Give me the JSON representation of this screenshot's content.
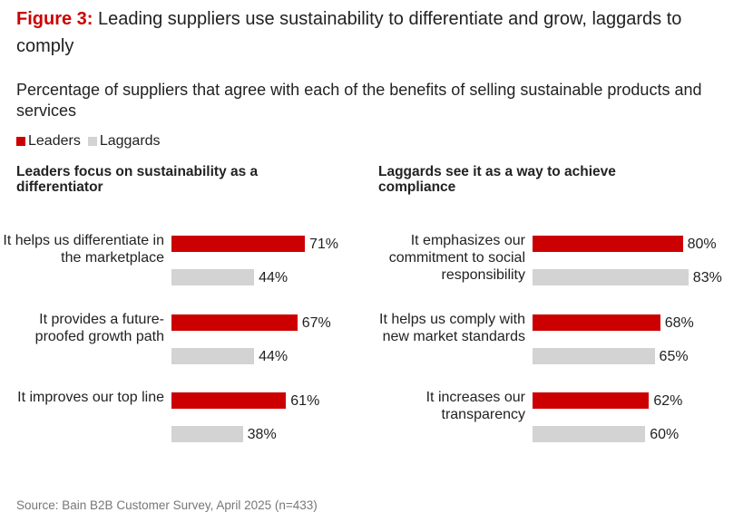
{
  "title_prefix": "Figure 3:",
  "title": "Leading suppliers use sustainability to differentiate and grow, laggards to comply",
  "subtitle": "Percentage of suppliers that agree with each of the benefits of selling sustainable products and services",
  "source": "Source: Bain B2B Customer Survey, April 2025 (n=433)",
  "chart_data": [
    {
      "type": "bar",
      "orientation": "horizontal",
      "title": "Leaders focus on sustainability as a differentiator",
      "categories": [
        "It helps us differentiate in the marketplace",
        "It provides a future-proofed growth path",
        "It improves our top line"
      ],
      "series": [
        {
          "name": "Leaders",
          "color": "#cc0000",
          "values": [
            71,
            67,
            61
          ],
          "value_labels": [
            "71%",
            "67%",
            "61%"
          ]
        },
        {
          "name": "Laggards",
          "color": "#d3d3d3",
          "values": [
            44,
            44,
            38
          ],
          "value_labels": [
            "44%",
            "44%",
            "38%"
          ]
        }
      ]
    },
    {
      "type": "bar",
      "orientation": "horizontal",
      "title": "Laggards see it as a way to achieve compliance",
      "categories": [
        "It emphasizes our commitment to social responsibility",
        "It helps us comply with new market standards",
        "It increases our transparency"
      ],
      "series": [
        {
          "name": "Leaders",
          "color": "#cc0000",
          "values": [
            80,
            68,
            62
          ],
          "value_labels": [
            "80%",
            "68%",
            "62%"
          ]
        },
        {
          "name": "Laggards",
          "color": "#d3d3d3",
          "values": [
            83,
            65,
            60
          ],
          "value_labels": [
            "83%",
            "65%",
            "60%"
          ]
        }
      ]
    }
  ]
}
